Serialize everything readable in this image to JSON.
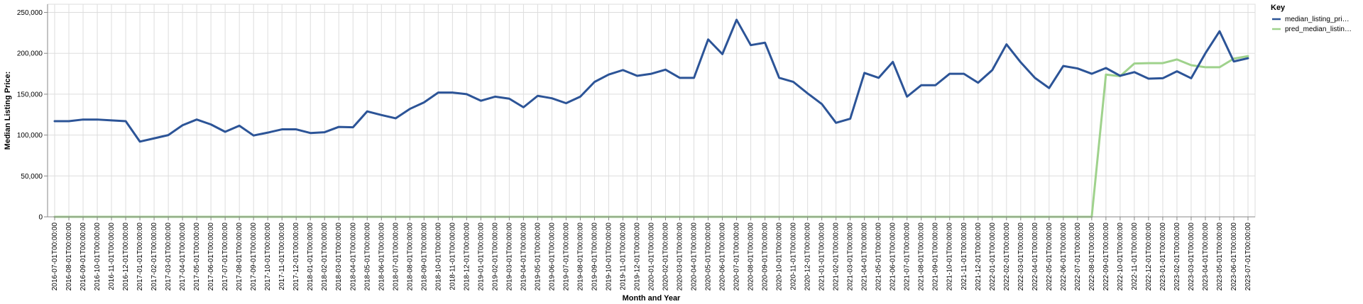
{
  "chart_data": {
    "type": "line",
    "xlabel": "Month and Year",
    "ylabel": "Median Listing Price:",
    "ylim": [
      0,
      260000
    ],
    "y_ticks": [
      0,
      50000,
      100000,
      150000,
      200000,
      250000
    ],
    "y_tick_labels": [
      "0",
      "50,000",
      "100,000",
      "150,000",
      "200,000",
      "250,000"
    ],
    "grid": true,
    "legend_title": "Key",
    "legend_position": "right",
    "x": [
      "2016-07-01T00:00:00",
      "2016-08-01T00:00:00",
      "2016-09-01T00:00:00",
      "2016-10-01T00:00:00",
      "2016-11-01T00:00:00",
      "2016-12-01T00:00:00",
      "2017-01-01T00:00:00",
      "2017-02-01T00:00:00",
      "2017-03-01T00:00:00",
      "2017-04-01T00:00:00",
      "2017-05-01T00:00:00",
      "2017-06-01T00:00:00",
      "2017-07-01T00:00:00",
      "2017-08-01T00:00:00",
      "2017-09-01T00:00:00",
      "2017-10-01T00:00:00",
      "2017-11-01T00:00:00",
      "2017-12-01T00:00:00",
      "2018-01-01T00:00:00",
      "2018-02-01T00:00:00",
      "2018-03-01T00:00:00",
      "2018-04-01T00:00:00",
      "2018-05-01T00:00:00",
      "2018-06-01T00:00:00",
      "2018-07-01T00:00:00",
      "2018-08-01T00:00:00",
      "2018-09-01T00:00:00",
      "2018-10-01T00:00:00",
      "2018-11-01T00:00:00",
      "2018-12-01T00:00:00",
      "2019-01-01T00:00:00",
      "2019-02-01T00:00:00",
      "2019-03-01T00:00:00",
      "2019-04-01T00:00:00",
      "2019-05-01T00:00:00",
      "2019-06-01T00:00:00",
      "2019-07-01T00:00:00",
      "2019-08-01T00:00:00",
      "2019-09-01T00:00:00",
      "2019-10-01T00:00:00",
      "2019-11-01T00:00:00",
      "2019-12-01T00:00:00",
      "2020-01-01T00:00:00",
      "2020-02-01T00:00:00",
      "2020-03-01T00:00:00",
      "2020-04-01T00:00:00",
      "2020-05-01T00:00:00",
      "2020-06-01T00:00:00",
      "2020-07-01T00:00:00",
      "2020-08-01T00:00:00",
      "2020-09-01T00:00:00",
      "2020-10-01T00:00:00",
      "2020-11-01T00:00:00",
      "2020-12-01T00:00:00",
      "2021-01-01T00:00:00",
      "2021-02-01T00:00:00",
      "2021-03-01T00:00:00",
      "2021-04-01T00:00:00",
      "2021-05-01T00:00:00",
      "2021-06-01T00:00:00",
      "2021-07-01T00:00:00",
      "2021-08-01T00:00:00",
      "2021-09-01T00:00:00",
      "2021-10-01T00:00:00",
      "2021-11-01T00:00:00",
      "2021-12-01T00:00:00",
      "2022-01-01T00:00:00",
      "2022-02-01T00:00:00",
      "2022-03-01T00:00:00",
      "2022-04-01T00:00:00",
      "2022-05-01T00:00:00",
      "2022-06-01T00:00:00",
      "2022-07-01T00:00:00",
      "2022-08-01T00:00:00",
      "2022-09-01T00:00:00",
      "2022-10-01T00:00:00",
      "2022-11-01T00:00:00",
      "2022-12-01T00:00:00",
      "2023-01-01T00:00:00",
      "2023-02-01T00:00:00",
      "2023-03-01T00:00:00",
      "2023-04-01T00:00:00",
      "2023-05-01T00:00:00",
      "2023-06-01T00:00:00",
      "2023-07-01T00:00:00"
    ],
    "series": [
      {
        "name": "median_listing_pri…",
        "color": "#2c5497",
        "values": [
          117000,
          117000,
          119000,
          119000,
          118000,
          117000,
          92000,
          96000,
          100000,
          112000,
          119000,
          113000,
          104000,
          111500,
          99500,
          103000,
          107000,
          107000,
          102500,
          103500,
          110000,
          109500,
          129000,
          124500,
          120500,
          132000,
          140000,
          152000,
          152000,
          150000,
          142000,
          147000,
          144500,
          134000,
          148000,
          145000,
          139000,
          147000,
          165000,
          174000,
          179500,
          172500,
          175000,
          180000,
          170000,
          170000,
          217000,
          199000,
          241000,
          210000,
          213000,
          170000,
          165000,
          151000,
          138000,
          115000,
          120000,
          176000,
          170000,
          189500,
          147000,
          161000,
          161000,
          175000,
          175000,
          164000,
          179500,
          211000,
          189000,
          170000,
          157500,
          184500,
          181500,
          175000,
          182000,
          172500,
          177000,
          169000,
          169500,
          178000,
          169500,
          200000,
          227000,
          190000,
          194000
        ]
      },
      {
        "name": "pred_median_listin…",
        "color": "#9fd28c",
        "values": [
          0,
          0,
          0,
          0,
          0,
          0,
          0,
          0,
          0,
          0,
          0,
          0,
          0,
          0,
          0,
          0,
          0,
          0,
          0,
          0,
          0,
          0,
          0,
          0,
          0,
          0,
          0,
          0,
          0,
          0,
          0,
          0,
          0,
          0,
          0,
          0,
          0,
          0,
          0,
          0,
          0,
          0,
          0,
          0,
          0,
          0,
          0,
          0,
          0,
          0,
          0,
          0,
          0,
          0,
          0,
          0,
          0,
          0,
          0,
          0,
          0,
          0,
          0,
          0,
          0,
          0,
          0,
          0,
          0,
          0,
          0,
          0,
          0,
          0,
          174000,
          172000,
          187500,
          188000,
          188000,
          192500,
          185500,
          183000,
          183000,
          193500,
          196500
        ]
      }
    ]
  }
}
